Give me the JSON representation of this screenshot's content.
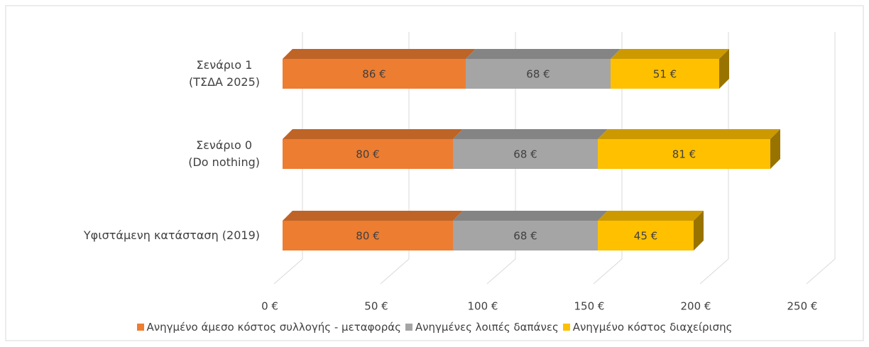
{
  "chart_data": {
    "type": "bar3d_stacked_horizontal",
    "categories": [
      "Σενάριο 1\n(ΤΣΔΑ 2025)",
      "Σενάριο 0\n(Do nothing)",
      "Υφιστάμενη κατάσταση (2019)"
    ],
    "series": [
      {
        "name": "Ανηγμένο άμεσο κόστος συλλογής - μεταφοράς",
        "color": "#ed7d31",
        "values": [
          86,
          80,
          80
        ],
        "value_labels": [
          "86 €",
          "80 €",
          "80 €"
        ]
      },
      {
        "name": "Ανηγμένες λοιπές δαπάνες",
        "color": "#a5a5a5",
        "values": [
          68,
          68,
          68
        ],
        "value_labels": [
          "68 €",
          "68 €",
          "68 €"
        ]
      },
      {
        "name": "Ανηγμένο κόστος διαχείρισης",
        "color": "#ffc000",
        "values": [
          51,
          81,
          45
        ],
        "value_labels": [
          "51 €",
          "81 €",
          "45 €"
        ]
      }
    ],
    "xlim": [
      0,
      250
    ],
    "xticks": [
      {
        "value": 0,
        "label": "0 €"
      },
      {
        "value": 50,
        "label": "50 €"
      },
      {
        "value": 100,
        "label": "100 €"
      },
      {
        "value": 150,
        "label": "150 €"
      },
      {
        "value": 200,
        "label": "200 €"
      },
      {
        "value": 250,
        "label": "250 €"
      }
    ],
    "grid": true,
    "legend": "bottom"
  }
}
